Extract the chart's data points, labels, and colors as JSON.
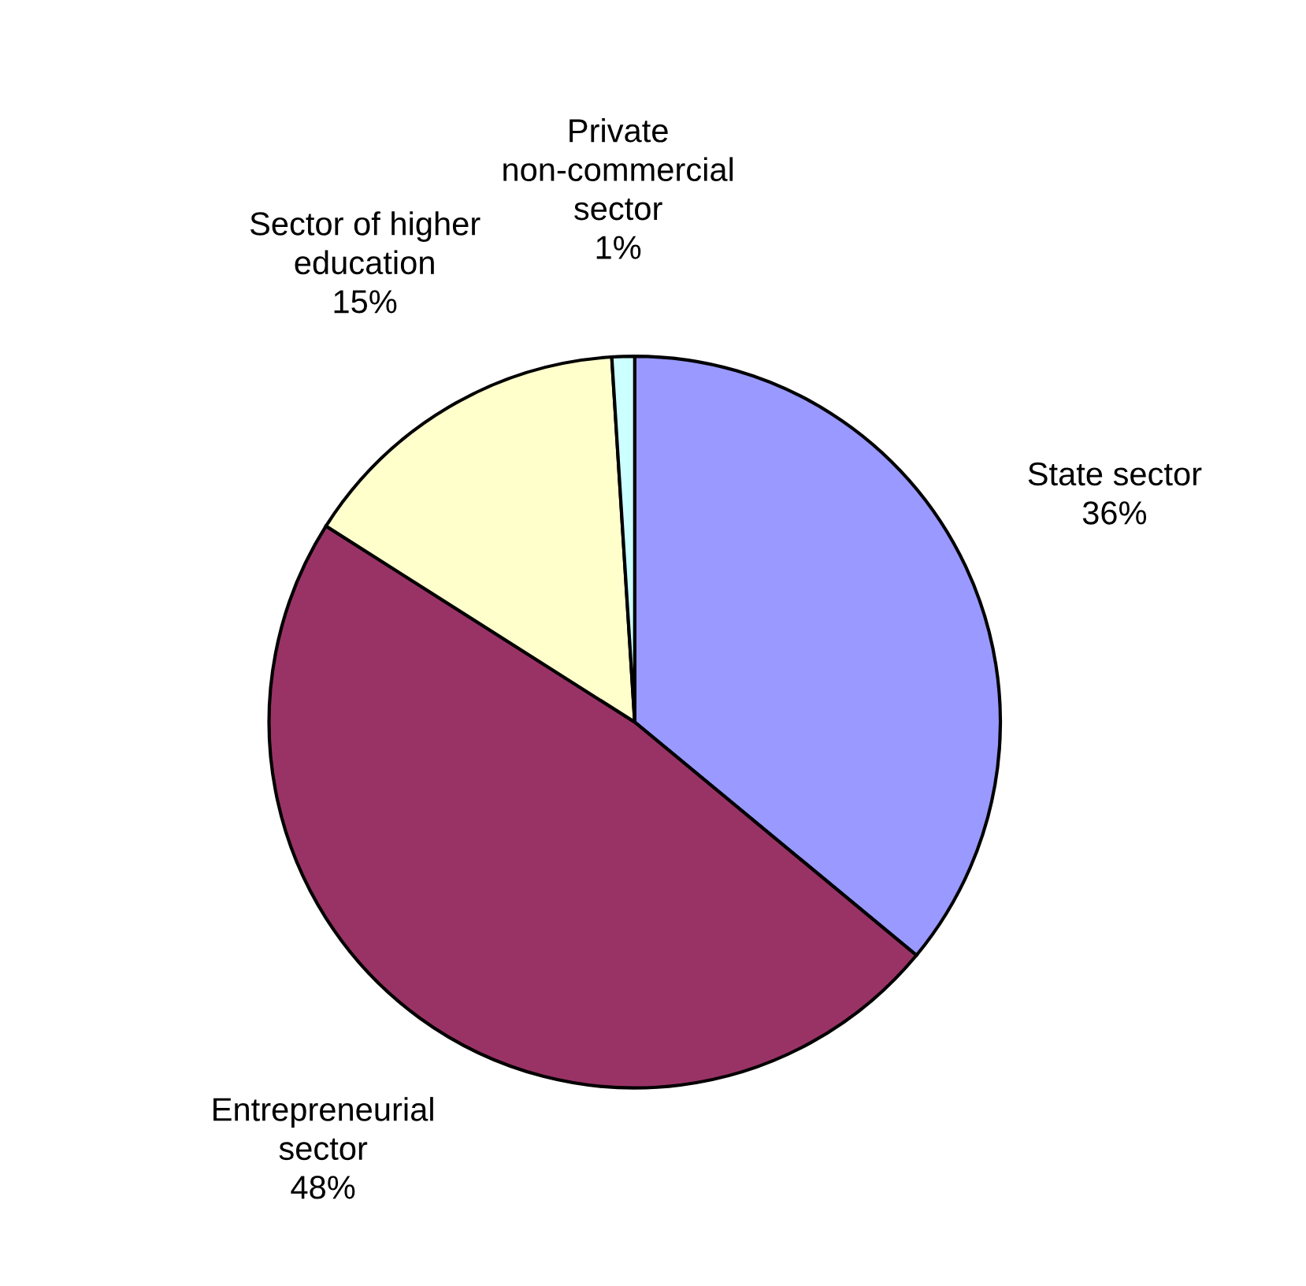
{
  "chart_data": {
    "type": "pie",
    "categories": [
      "State sector",
      "Entrepreneurial sector",
      "Sector of higher education",
      "Private non-commercial sector"
    ],
    "values": [
      36,
      48,
      15,
      1
    ],
    "value_labels": [
      "36%",
      "48%",
      "15%",
      "1%"
    ],
    "colors": [
      "#9999ff",
      "#993366",
      "#ffffcc",
      "#ccffff"
    ]
  }
}
